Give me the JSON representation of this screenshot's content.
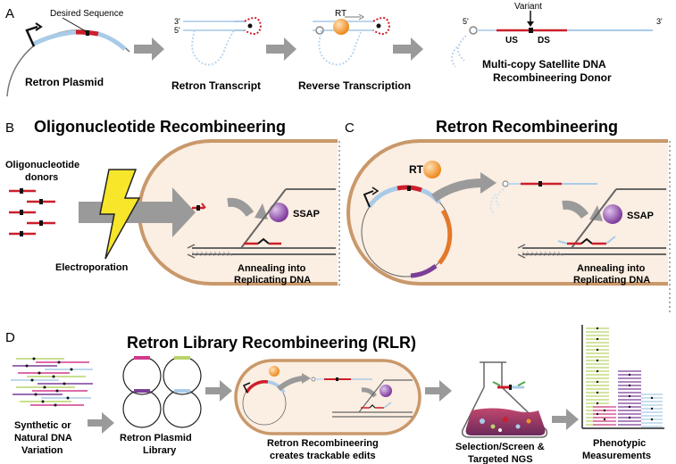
{
  "panelA": {
    "letter": "A",
    "desired_sequence": "Desired Sequence",
    "retron_plasmid": "Retron Plasmid",
    "retron_transcript": "Retron Transcript",
    "reverse_transcription": "Reverse Transcription",
    "rt": "RT",
    "variant": "Variant",
    "us": "US",
    "ds": "DS",
    "five_prime": "5'",
    "three_prime": "3'",
    "donor_line1": "Multi-copy Satellite DNA",
    "donor_line2": "Recombineering Donor"
  },
  "panelB": {
    "letter": "B",
    "title": "Oligonucleotide Recombineering",
    "donors_line1": "Oligonucleotide",
    "donors_line2": "donors",
    "electroporation": "Electroporation",
    "ssap": "SSAP",
    "annealing_line1": "Annealing into",
    "annealing_line2": "Replicating DNA"
  },
  "panelC": {
    "letter": "C",
    "title": "Retron Recombineering",
    "rt": "RT",
    "ssap": "SSAP",
    "annealing_line1": "Annealing into",
    "annealing_line2": "Replicating DNA"
  },
  "panelD": {
    "letter": "D",
    "title": "Retron Library Recombineering (RLR)",
    "variation_line1": "Synthetic or",
    "variation_line2": "Natural DNA",
    "variation_line3": "Variation",
    "library_line1": "Retron Plasmid",
    "library_line2": "Library",
    "edits_line1": "Retron Recombineering",
    "edits_line2": "creates trackable edits",
    "selection_line1": "Selection/Screen &",
    "selection_line2": "Targeted NGS",
    "phenotypic_line1": "Phenotypic",
    "phenotypic_line2": "Measurements"
  },
  "colors": {
    "dna_red": "#cc1f2b",
    "dna_lightblue": "#a9cbe8",
    "cell_fill": "#fbeee2",
    "cell_border": "#c9986a",
    "arrow_gray": "#9a9a9a",
    "rt_orange": "#f0962d",
    "ssap_purple": "#8a4aa6",
    "bolt_yellow": "#f7e62a",
    "orange_gene": "#e3792a",
    "purple_gene": "#7b3f98",
    "green": "#b9d36a",
    "magenta": "#d23a8c"
  }
}
